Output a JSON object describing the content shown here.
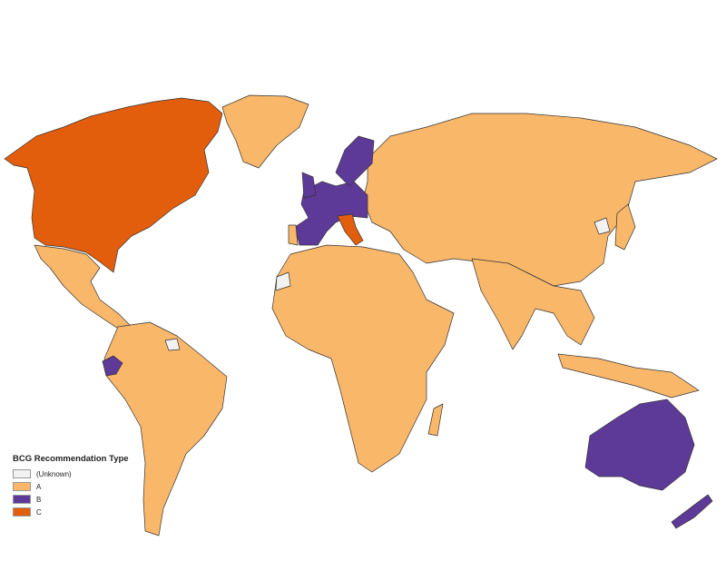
{
  "legend": {
    "title": "BCG Recommendation Type",
    "items": [
      {
        "label": "(Unknown)",
        "color": "#f2f2f2"
      },
      {
        "label": "A",
        "color": "#f9b76a"
      },
      {
        "label": "B",
        "color": "#5e3a98"
      },
      {
        "label": "C",
        "color": "#e35e0c"
      }
    ]
  },
  "regions": {
    "canada_usa": "C",
    "greenland": "A",
    "mexico_central_america": "A",
    "south_america": "A",
    "ecuador": "B",
    "guyana_suriname": "Unknown",
    "western_europe": "B",
    "scandinavia": "B",
    "italy": "C",
    "portugal": "A",
    "eastern_europe_russia_asia": "A",
    "africa": "A",
    "western_sahara": "Unknown",
    "north_korea": "Unknown",
    "south_asia_southeast_asia": "A",
    "australia": "B",
    "new_zealand": "B"
  }
}
